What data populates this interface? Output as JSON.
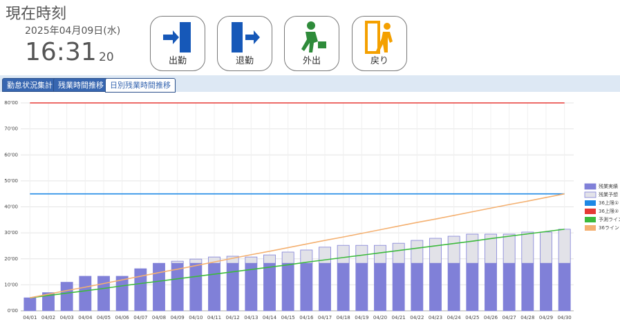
{
  "header": {
    "title": "現在時刻",
    "date": "2025年04月09日(水)",
    "time": "16:31",
    "seconds": "20"
  },
  "buttons": [
    "出勤",
    "退勤",
    "外出",
    "戻り"
  ],
  "tabs": [
    "勤怠状況集計",
    "残業時間推移",
    "日別残業時間推移"
  ],
  "chart_data": {
    "type": "bar",
    "categories": [
      "04/01",
      "04/02",
      "04/03",
      "04/04",
      "04/05",
      "04/06",
      "04/07",
      "04/08",
      "04/09",
      "04/10",
      "04/11",
      "04/12",
      "04/13",
      "04/14",
      "04/15",
      "04/16",
      "04/17",
      "04/18",
      "04/19",
      "04/20",
      "04/21",
      "04/22",
      "04/23",
      "04/24",
      "04/25",
      "04/26",
      "04/27",
      "04/28",
      "04/29",
      "04/30"
    ],
    "series": [
      {
        "name": "残業実績",
        "type": "bar",
        "color": "#8080d8",
        "values": [
          5,
          7,
          11,
          13.3,
          13.3,
          13.3,
          16.2,
          18.3,
          18.3,
          18.3,
          18.3,
          18.3,
          18.3,
          18.3,
          18.3,
          18.3,
          18.3,
          18.3,
          18.3,
          18.3,
          18.3,
          18.3,
          18.3,
          18.3,
          18.3,
          18.3,
          18.3,
          18.3,
          18.3,
          18.3
        ]
      },
      {
        "name": "残業予想",
        "type": "bar",
        "color": "#e2e2e8",
        "values": [
          0,
          0,
          0,
          0,
          0,
          0,
          0,
          0,
          0.8,
          1.6,
          2.4,
          2.7,
          2.4,
          3.2,
          4.3,
          5.1,
          6.2,
          6.9,
          6.9,
          6.9,
          7.7,
          8.8,
          9.6,
          10.4,
          11.2,
          11.2,
          11.2,
          12,
          12,
          13.1
        ]
      },
      {
        "name": "36上限①",
        "type": "line",
        "color": "#1e88e5",
        "values": [
          45,
          45,
          45,
          45,
          45,
          45,
          45,
          45,
          45,
          45,
          45,
          45,
          45,
          45,
          45,
          45,
          45,
          45,
          45,
          45,
          45,
          45,
          45,
          45,
          45,
          45,
          45,
          45,
          45,
          45
        ]
      },
      {
        "name": "36上限②",
        "type": "line",
        "color": "#e53935",
        "values": [
          80,
          80,
          80,
          80,
          80,
          80,
          80,
          80,
          80,
          80,
          80,
          80,
          80,
          80,
          80,
          80,
          80,
          80,
          80,
          80,
          80,
          80,
          80,
          80,
          80,
          80,
          80,
          80,
          80,
          80
        ]
      },
      {
        "name": "予測ライン",
        "type": "line",
        "color": "#3cba3c",
        "values": [
          5,
          5.9,
          6.8,
          7.7,
          8.6,
          9.6,
          10.5,
          11.4,
          12.3,
          13.2,
          14.1,
          15,
          15.9,
          16.8,
          17.7,
          18.7,
          19.6,
          20.5,
          21.4,
          22.3,
          23.2,
          24.1,
          25,
          25.9,
          26.8,
          27.8,
          28.7,
          29.6,
          30.5,
          31.4
        ]
      },
      {
        "name": "36ライン",
        "type": "line",
        "color": "#f4b070",
        "values": [
          5,
          6.4,
          7.8,
          9.1,
          10.5,
          11.9,
          13.3,
          14.7,
          16,
          17.4,
          18.8,
          20.2,
          21.6,
          22.9,
          24.3,
          25.7,
          27.1,
          28.4,
          29.8,
          31.2,
          32.6,
          34,
          35.3,
          36.7,
          38.1,
          39.5,
          40.9,
          42.2,
          43.6,
          45
        ]
      }
    ],
    "ylim": [
      0,
      80
    ],
    "yticks": [
      {
        "value": 0,
        "label": "0'00"
      },
      {
        "value": 10,
        "label": "10'00"
      },
      {
        "value": 20,
        "label": "20'00"
      },
      {
        "value": 30,
        "label": "30'00"
      },
      {
        "value": 40,
        "label": "40'00"
      },
      {
        "value": 50,
        "label": "50'00"
      },
      {
        "value": 60,
        "label": "60'00"
      },
      {
        "value": 70,
        "label": "70'00"
      },
      {
        "value": 80,
        "label": "80'00"
      }
    ],
    "grid": true,
    "legend": "right"
  }
}
